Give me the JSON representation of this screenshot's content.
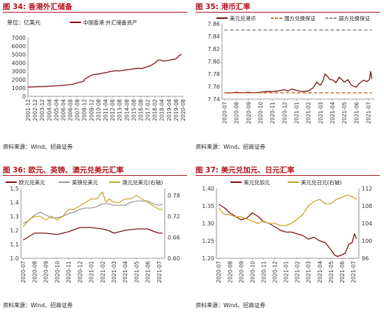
{
  "panels": [
    {
      "title": "图 34: 香港外汇储备",
      "source": "资料来源：Wind、招商证券",
      "chart_data": {
        "type": "line",
        "unit_label": "单位：亿美元",
        "categories": [
          "2001-12",
          "2002-12",
          "2003-12",
          "2004-04",
          "2005-04",
          "2006-04",
          "2006-08",
          "2007-08",
          "2008-12",
          "2009-12",
          "2010-08",
          "2011-04",
          "2012-08",
          "2013-08",
          "2014-08",
          "2015-08",
          "2016-08",
          "2017-02",
          "2018-02",
          "2018-04",
          "2019-04",
          "2019-08",
          "2020-08"
        ],
        "series": [
          {
            "name": "中国香港:外汇储备资产",
            "color": "#7b0c0c",
            "x": [
              2001.9,
              2002.5,
              2003.0,
              2003.5,
              2004.0,
              2004.5,
              2005.0,
              2005.5,
              2006.0,
              2006.5,
              2007.0,
              2007.5,
              2008.0,
              2008.4,
              2008.8,
              2009.0,
              2009.3,
              2009.6,
              2009.9,
              2010.2,
              2010.5,
              2010.9,
              2011.3,
              2011.7,
              2012.0,
              2012.4,
              2012.8,
              2013.2,
              2013.6,
              2014.0,
              2014.4,
              2014.8,
              2015.2,
              2015.6,
              2016.0,
              2016.4,
              2016.8,
              2017.2,
              2017.6,
              2018.0,
              2018.3,
              2018.7,
              2019.0,
              2019.4,
              2019.8,
              2020.2,
              2020.5,
              2020.7,
              2020.95
            ],
            "y": [
              1110,
              1120,
              1140,
              1170,
              1180,
              1210,
              1230,
              1260,
              1300,
              1330,
              1380,
              1450,
              1600,
              1700,
              1800,
              2100,
              2250,
              2450,
              2560,
              2620,
              2650,
              2700,
              2800,
              2850,
              2950,
              3000,
              3050,
              3030,
              3080,
              3150,
              3200,
              3250,
              3320,
              3350,
              3300,
              3450,
              3550,
              3720,
              3950,
              4300,
              4350,
              4200,
              4250,
              4300,
              4400,
              4450,
              4700,
              4950,
              4950
            ]
          }
        ],
        "ylim": [
          0,
          7000
        ],
        "yticks": [
          0,
          1000,
          2000,
          3000,
          4000,
          5000,
          6000,
          7000
        ],
        "xlim": [
          2001.9,
          2021.1
        ]
      }
    },
    {
      "title": "图 35: 港币汇率",
      "source": "资料来源：Wind、招商证券",
      "chart_data": {
        "type": "line",
        "categories": [
          "2020-07",
          "2020-08",
          "2020-09",
          "2020-10",
          "2020-11",
          "2020-12",
          "2021-01",
          "2021-02",
          "2021-03",
          "2021-04",
          "2021-05",
          "2021-06",
          "2021-07"
        ],
        "series": [
          {
            "name": "美元兑港币",
            "color": "#7b0c0c",
            "x": [
              0,
              0.5,
              1,
              1.5,
              2,
              2.5,
              3,
              3.5,
              4,
              4.5,
              5,
              5.3,
              5.6,
              6,
              6.5,
              7,
              7.4,
              7.7,
              8,
              8.2,
              8.4,
              8.6,
              8.8,
              9,
              9.3,
              9.6,
              10,
              10.3,
              10.6,
              11,
              11.3,
              11.6,
              11.9,
              12.1,
              12.2,
              12.3
            ],
            "y": [
              7.75,
              7.75,
              7.751,
              7.75,
              7.751,
              7.75,
              7.751,
              7.752,
              7.752,
              7.753,
              7.755,
              7.753,
              7.756,
              7.754,
              7.752,
              7.753,
              7.758,
              7.767,
              7.762,
              7.768,
              7.78,
              7.776,
              7.771,
              7.771,
              7.766,
              7.775,
              7.767,
              7.771,
              7.762,
              7.759,
              7.766,
              7.77,
              7.768,
              7.771,
              7.784,
              7.772
            ]
          },
          {
            "name": "强方兑换保证",
            "color": "#d06a1e",
            "dashed": true,
            "x": [
              0,
              12.3
            ],
            "y": [
              7.75,
              7.75
            ]
          },
          {
            "name": "弱方兑换保证",
            "color": "#888888",
            "dashed": true,
            "x": [
              0,
              12.3
            ],
            "y": [
              7.85,
              7.85
            ]
          }
        ],
        "ylim": [
          7.74,
          7.86
        ],
        "yticks": [
          7.74,
          7.76,
          7.78,
          7.8,
          7.82,
          7.84,
          7.86
        ],
        "xlim": [
          -0.2,
          12.5
        ]
      }
    },
    {
      "title": "图 36: 欧元、英镑、澳元兑美元汇率",
      "source": "资料来源：Wind、招商证券",
      "chart_data": {
        "type": "line",
        "categories": [
          "2020-07",
          "2020-08",
          "2020-09",
          "2020-10",
          "2020-11",
          "2020-12",
          "2021-01",
          "2021-02",
          "2021-03",
          "2021-04",
          "2021-05",
          "2021-06",
          "2021-07"
        ],
        "series": [
          {
            "name": "欧元兑美元",
            "color": "#7b0c0c",
            "axis": "left",
            "x": [
              0,
              1,
              2,
              3,
              4,
              5,
              6,
              7,
              7.5,
              8,
              8.5,
              9,
              10,
              11,
              11.6,
              12,
              12.3
            ],
            "y": [
              1.13,
              1.18,
              1.18,
              1.17,
              1.19,
              1.22,
              1.22,
              1.21,
              1.2,
              1.18,
              1.19,
              1.2,
              1.21,
              1.21,
              1.19,
              1.18,
              1.18
            ]
          },
          {
            "name": "英镑兑美元",
            "color": "#9a9a9a",
            "axis": "left",
            "x": [
              0,
              0.5,
              1,
              1.5,
              2,
              2.5,
              3,
              3.5,
              4,
              4.5,
              5,
              5.5,
              6,
              6.5,
              7,
              7.5,
              8,
              8.5,
              9,
              9.5,
              10,
              10.5,
              11,
              11.5,
              12,
              12.3
            ],
            "y": [
              1.25,
              1.27,
              1.31,
              1.33,
              1.31,
              1.29,
              1.29,
              1.3,
              1.32,
              1.33,
              1.35,
              1.36,
              1.36,
              1.37,
              1.39,
              1.39,
              1.38,
              1.38,
              1.38,
              1.4,
              1.41,
              1.41,
              1.41,
              1.39,
              1.38,
              1.39
            ]
          },
          {
            "name": "澳元兑美元(右轴)",
            "color": "#c9a227",
            "axis": "right",
            "x": [
              0,
              0.5,
              1,
              1.5,
              2,
              2.5,
              3,
              3.5,
              4,
              4.5,
              5,
              5.5,
              6,
              6.5,
              7,
              7.3,
              7.6,
              8,
              8.5,
              9,
              9.5,
              10,
              10.5,
              11,
              11.5,
              12,
              12.3
            ],
            "y": [
              0.69,
              0.71,
              0.72,
              0.72,
              0.71,
              0.72,
              0.71,
              0.72,
              0.74,
              0.74,
              0.75,
              0.76,
              0.77,
              0.77,
              0.79,
              0.76,
              0.77,
              0.76,
              0.76,
              0.77,
              0.77,
              0.78,
              0.77,
              0.76,
              0.75,
              0.74,
              0.74
            ]
          }
        ],
        "ylim": [
          1.0,
          1.5
        ],
        "yticks": [
          1.0,
          1.1,
          1.2,
          1.3,
          1.4,
          1.5
        ],
        "ylim_right": [
          0.6,
          0.8
        ],
        "yticks_right": [
          0.6,
          0.66,
          0.72,
          0.78
        ],
        "xlim": [
          -0.2,
          12.5
        ]
      }
    },
    {
      "title": "图 37: 美元兑加元、日元汇率",
      "source": "资料来源：Wind、招商证券",
      "chart_data": {
        "type": "line",
        "categories": [
          "2020-07",
          "2020-08",
          "2020-09",
          "2020-10",
          "2020-11",
          "2020-12",
          "2021-01",
          "2021-02",
          "2021-03",
          "2021-04",
          "2021-05",
          "2021-06",
          "2021-07"
        ],
        "series": [
          {
            "name": "美元兑加元",
            "color": "#7b0c0c",
            "axis": "left",
            "x": [
              0,
              0.5,
              1,
              1.5,
              2,
              2.5,
              3,
              3.5,
              4,
              4.5,
              5,
              5.5,
              6,
              6.5,
              7,
              7.5,
              8,
              8.5,
              9,
              9.5,
              10,
              10.3,
              10.6,
              11,
              11.3,
              11.6,
              11.9,
              12.1,
              12.3
            ],
            "y": [
              1.355,
              1.345,
              1.33,
              1.32,
              1.31,
              1.315,
              1.33,
              1.32,
              1.305,
              1.3,
              1.29,
              1.28,
              1.275,
              1.275,
              1.27,
              1.265,
              1.255,
              1.26,
              1.25,
              1.245,
              1.225,
              1.21,
              1.205,
              1.21,
              1.215,
              1.24,
              1.245,
              1.27,
              1.255
            ]
          },
          {
            "name": "美元兑日元(右轴)",
            "color": "#c9a227",
            "axis": "right",
            "x": [
              0,
              0.5,
              1,
              1.5,
              2,
              2.5,
              3,
              3.5,
              4,
              4.5,
              5,
              5.5,
              6,
              6.5,
              7,
              7.5,
              8,
              8.5,
              9,
              9.5,
              10,
              10.5,
              11,
              11.5,
              12,
              12.3
            ],
            "y": [
              107.5,
              106,
              106,
              105.5,
              105.5,
              105,
              104.5,
              104,
              104.5,
              104,
              104,
              103.5,
              103.5,
              104,
              105,
              106,
              108,
              109,
              109.5,
              108.5,
              108.5,
              109.5,
              110,
              110.5,
              110,
              109.5
            ]
          }
        ],
        "ylim": [
          1.2,
          1.4
        ],
        "yticks": [
          1.2,
          1.25,
          1.3,
          1.35,
          1.4
        ],
        "ylim_right": [
          96,
          112
        ],
        "yticks_right": [
          96,
          100,
          104,
          108,
          112
        ],
        "xlim": [
          -0.2,
          12.5
        ]
      }
    }
  ]
}
